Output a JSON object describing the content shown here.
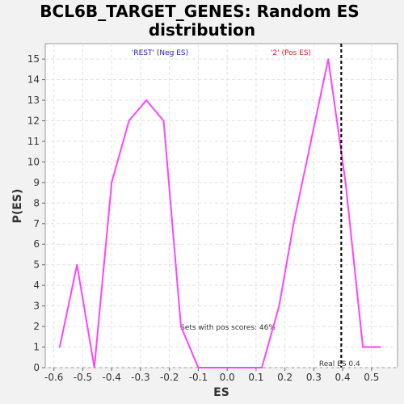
{
  "chart_data": {
    "type": "line",
    "title_line1": "BCL6B_TARGET_GENES: Random ES",
    "title_line2": "distribution",
    "xlabel": "ES",
    "ylabel": "P(ES)",
    "xlim": [
      -0.63,
      0.59
    ],
    "ylim": [
      0,
      15.75
    ],
    "xticks": [
      -0.6,
      -0.5,
      -0.4,
      -0.3,
      -0.2,
      -0.1,
      0.0,
      0.1,
      0.2,
      0.3,
      0.4,
      0.5
    ],
    "xtick_labels": [
      "-0.6",
      "-0.5",
      "-0.4",
      "-0.3",
      "-0.2",
      "-0.1",
      "0.0",
      "0.1",
      "0.2",
      "0.3",
      "0.4",
      "0.5"
    ],
    "yticks": [
      0,
      1,
      2,
      3,
      4,
      5,
      6,
      7,
      8,
      9,
      10,
      11,
      12,
      13,
      14,
      15
    ],
    "ytick_labels": [
      "0",
      "1",
      "2",
      "3",
      "4",
      "5",
      "6",
      "7",
      "8",
      "9",
      "10",
      "11",
      "12",
      "13",
      "14",
      "15"
    ],
    "grid": true,
    "series": [
      {
        "color": "#ff44ff",
        "x": [
          -0.58,
          -0.52,
          -0.46,
          -0.4,
          -0.34,
          -0.28,
          -0.22,
          -0.16,
          -0.1,
          0.0,
          0.12,
          0.18,
          0.23,
          0.29,
          0.35,
          0.41,
          0.47,
          0.53
        ],
        "y": [
          1,
          5,
          0,
          9,
          12,
          13,
          12,
          2,
          0,
          0,
          0,
          3,
          7,
          11,
          15,
          9,
          1,
          1
        ]
      }
    ],
    "vline": {
      "x": 0.395,
      "label": "Real ES 0.4",
      "style": "dashed",
      "color": "#000000"
    },
    "annotations": {
      "neg_label": "'REST' (Neg ES)",
      "neg_color": "#2222cc",
      "pos_label": "'2' (Pos ES)",
      "pos_color": "#dd2222",
      "pos_scores_text": "Sets with pos scores: 46%"
    }
  }
}
